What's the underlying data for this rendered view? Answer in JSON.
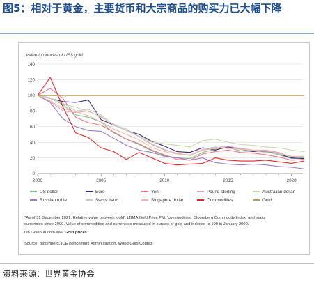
{
  "figure": {
    "title": "图5：相对于黄金，主要货币和大宗商品的购买力已大幅下降",
    "source": "资料来源：世界黄金协会"
  },
  "chart_data": {
    "type": "line",
    "ylabel": "Value in ounces of US$ gold",
    "ylim": [
      0,
      140
    ],
    "yticks": [
      0,
      20,
      40,
      60,
      80,
      100,
      120,
      140
    ],
    "xlim": [
      2000,
      2020.9
    ],
    "xticks": [
      2000,
      2005,
      2010,
      2015,
      2020
    ],
    "grid": "horizontal",
    "legend_position": "bottom",
    "series": [
      {
        "name": "US dollar",
        "color": "#7fbf8f",
        "x": [
          2000,
          2001,
          2002,
          2003,
          2004,
          2005,
          2006,
          2007,
          2008,
          2009,
          2010,
          2011,
          2012,
          2013,
          2014,
          2015,
          2016,
          2017,
          2018,
          2019,
          2020,
          2021
        ],
        "values": [
          100,
          96,
          88,
          75,
          72,
          66,
          52,
          44,
          37,
          29,
          23,
          20,
          19,
          27,
          31,
          33,
          29,
          28,
          28,
          24,
          19,
          20
        ]
      },
      {
        "name": "Euro",
        "color": "#3b2a7a",
        "x": [
          2000,
          2001,
          2002,
          2003,
          2004,
          2005,
          2006,
          2007,
          2008,
          2009,
          2010,
          2011,
          2012,
          2013,
          2014,
          2015,
          2016,
          2017,
          2018,
          2019,
          2020,
          2021
        ],
        "values": [
          100,
          96,
          92,
          91,
          94,
          69,
          62,
          55,
          50,
          41,
          35,
          28,
          27,
          33,
          30,
          34,
          31,
          28,
          29,
          25,
          20,
          19
        ]
      },
      {
        "name": "Yen",
        "color": "#e8787f",
        "x": [
          2000,
          2001,
          2002,
          2003,
          2004,
          2005,
          2006,
          2007,
          2008,
          2009,
          2010,
          2011,
          2012,
          2013,
          2014,
          2015,
          2016,
          2017,
          2018,
          2019,
          2020,
          2021
        ],
        "values": [
          100,
          109,
          96,
          72,
          65,
          62,
          53,
          44,
          38,
          30,
          24,
          18,
          17,
          25,
          28,
          30,
          27,
          26,
          24,
          21,
          17,
          18
        ]
      },
      {
        "name": "Pound sterling",
        "color": "#e3a6b8",
        "x": [
          2000,
          2001,
          2002,
          2003,
          2004,
          2005,
          2006,
          2007,
          2008,
          2009,
          2010,
          2011,
          2012,
          2013,
          2014,
          2015,
          2016,
          2017,
          2018,
          2019,
          2020,
          2021
        ],
        "values": [
          100,
          92,
          80,
          78,
          80,
          72,
          63,
          55,
          47,
          37,
          30,
          26,
          23,
          30,
          33,
          35,
          32,
          30,
          30,
          27,
          21,
          22
        ]
      },
      {
        "name": "Australian dollar",
        "color": "#c8d9b0",
        "x": [
          2000,
          2001,
          2002,
          2003,
          2004,
          2005,
          2006,
          2007,
          2008,
          2009,
          2010,
          2011,
          2012,
          2013,
          2014,
          2015,
          2016,
          2017,
          2018,
          2019,
          2020,
          2021
        ],
        "values": [
          100,
          96,
          89,
          85,
          79,
          73,
          62,
          55,
          48,
          40,
          38,
          36,
          34,
          42,
          44,
          40,
          37,
          36,
          34,
          33,
          30,
          28
        ]
      },
      {
        "name": "Russian ruble",
        "color": "#9b7fc7",
        "x": [
          2000,
          2001,
          2002,
          2003,
          2004,
          2005,
          2006,
          2007,
          2008,
          2009,
          2010,
          2011,
          2012,
          2013,
          2014,
          2015,
          2016,
          2017,
          2018,
          2019,
          2020,
          2021
        ],
        "values": [
          100,
          91,
          70,
          60,
          55,
          54,
          45,
          36,
          30,
          27,
          22,
          20,
          17,
          20,
          14,
          12,
          11,
          12,
          11,
          9,
          8,
          6
        ]
      },
      {
        "name": "Swiss franc",
        "color": "#c9c9c9",
        "x": [
          2000,
          2001,
          2002,
          2003,
          2004,
          2005,
          2006,
          2007,
          2008,
          2009,
          2010,
          2011,
          2012,
          2013,
          2014,
          2015,
          2016,
          2017,
          2018,
          2019,
          2020,
          2021
        ],
        "values": [
          100,
          97,
          90,
          80,
          82,
          75,
          62,
          57,
          47,
          38,
          31,
          25,
          23,
          31,
          34,
          32,
          31,
          29,
          27,
          25,
          22,
          21
        ]
      },
      {
        "name": "Singapore dollar",
        "color": "#f0b9a8",
        "x": [
          2000,
          2001,
          2002,
          2003,
          2004,
          2005,
          2006,
          2007,
          2008,
          2009,
          2010,
          2011,
          2012,
          2013,
          2014,
          2015,
          2016,
          2017,
          2018,
          2019,
          2020,
          2021
        ],
        "values": [
          100,
          93,
          83,
          79,
          74,
          66,
          57,
          50,
          43,
          33,
          28,
          25,
          24,
          30,
          32,
          33,
          31,
          30,
          29,
          26,
          22,
          22
        ]
      },
      {
        "name": "Commodities",
        "color": "#e0272c",
        "x": [
          2000,
          2001,
          2002,
          2003,
          2004,
          2005,
          2006,
          2007,
          2008,
          2009,
          2010,
          2011,
          2012,
          2013,
          2014,
          2015,
          2016,
          2017,
          2018,
          2019,
          2020,
          2021
        ],
        "values": [
          100,
          123,
          85,
          52,
          46,
          33,
          28,
          18,
          27,
          20,
          13,
          11,
          12,
          13,
          20,
          17,
          16,
          16,
          17,
          15,
          13,
          16
        ]
      },
      {
        "name": "Gold",
        "color": "#b59a5f",
        "x": [
          2000,
          2021
        ],
        "values": [
          100,
          100
        ]
      }
    ]
  },
  "notes": {
    "footnote_line1": "*As of 31 December 2021. Relative value between 'gold': LBMA Gold Price PM, 'commodities': Bloomberg Commodity Index, and major",
    "footnote_line2": "currencies since 2000. Value of commodities and currencies measured in ounces of gold and indexed to 100 in January 2000.",
    "goldhub_prefix": "On Goldhub.com see: ",
    "goldhub_link": "Gold prices",
    "goldhub_suffix": ".",
    "source_line": "Source: Bloomberg, ICE Benchmark Administration, World Gold Council"
  }
}
